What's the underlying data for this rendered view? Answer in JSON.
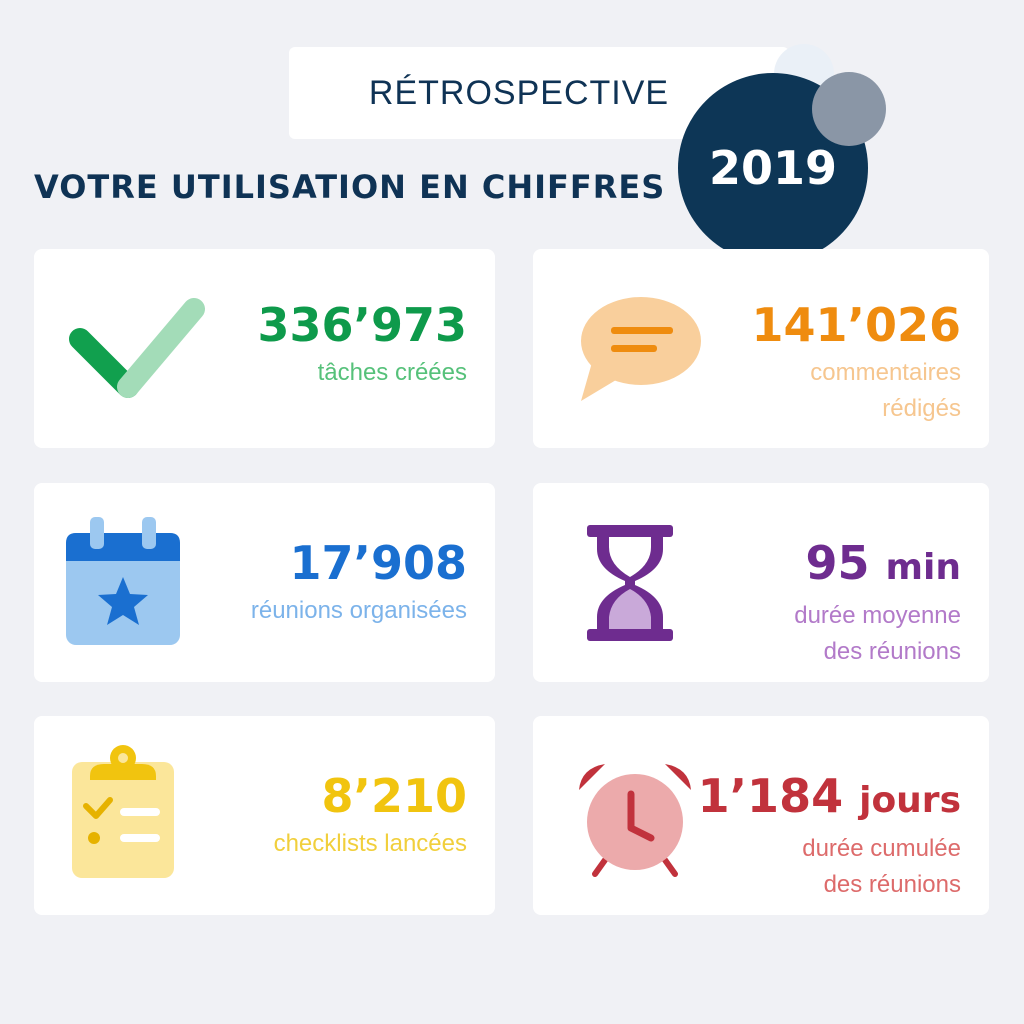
{
  "header": {
    "retro_label": "RÉTROSPECTIVE",
    "headline": "VOTRE UTILISATION EN CHIFFRES",
    "year": "2019"
  },
  "stats": [
    {
      "value": "336’973",
      "unit": "",
      "label_lines": [
        "tâches créées"
      ],
      "icon": "check-icon",
      "value_color": "#0e9a4b",
      "label_color": "#56c17a"
    },
    {
      "value": "141’026",
      "unit": "",
      "label_lines": [
        "commentaires",
        "rédigés"
      ],
      "icon": "comment-bubble-icon",
      "value_color": "#ef8c0f",
      "label_color": "#f6c68f"
    },
    {
      "value": "17’908",
      "unit": "",
      "label_lines": [
        "réunions organisées"
      ],
      "icon": "calendar-star-icon",
      "value_color": "#1a6fd0",
      "label_color": "#7cb3ea"
    },
    {
      "value": "95",
      "unit": "min",
      "label_lines": [
        "durée moyenne",
        "des réunions"
      ],
      "icon": "hourglass-icon",
      "value_color": "#6e2c8f",
      "label_color": "#b27ac9"
    },
    {
      "value": "8’210",
      "unit": "",
      "label_lines": [
        "checklists lancées"
      ],
      "icon": "clipboard-checklist-icon",
      "value_color": "#f1c40f",
      "label_color": "#f1cf3c"
    },
    {
      "value": "1’184",
      "unit": "jours",
      "label_lines": [
        "durée cumulée",
        "des réunions"
      ],
      "icon": "alarm-clock-icon",
      "value_color": "#c1323c",
      "label_color": "#dd6b6b"
    }
  ]
}
